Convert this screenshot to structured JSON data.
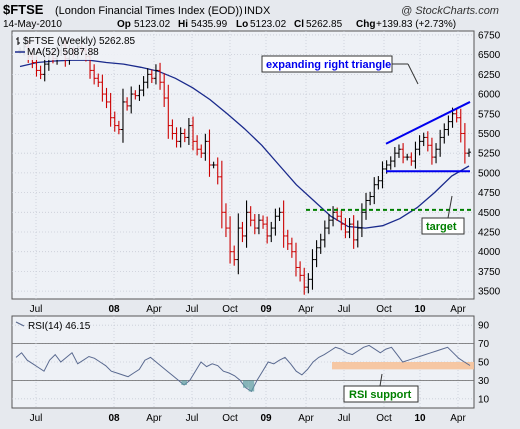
{
  "header": {
    "symbol": "$FTSE",
    "name": "(London Financial Times Index (EOD))",
    "exchange": "INDX",
    "watermark": "@ StockCharts.com",
    "date": "14-May-2010",
    "quote": {
      "op_label": "Op",
      "op": "5123.02",
      "hi_label": "Hi",
      "hi": "5435.99",
      "lo_label": "Lo",
      "lo": "5123.02",
      "cl_label": "Cl",
      "cl": "5262.85",
      "chg_label": "Chg",
      "chg": "+139.83 (+2.73%)"
    }
  },
  "colors": {
    "panel_bg": "#eef1f6",
    "outer_bg": "#e6e9ee",
    "up_bar": "#000000",
    "down_bar": "#cc0000",
    "ma_line": "#1a2a8c",
    "rsi_line": "#5a6a90",
    "annotation_blue": "#0000ee",
    "annotation_green": "#008000",
    "rsi_support_band": "#f6c29a"
  },
  "chart_data": [
    {
      "type": "ohlc",
      "legend": [
        {
          "label": "$FTSE (Weekly) 5262.85",
          "kind": "bar"
        },
        {
          "label": "MA(52) 5087.88",
          "kind": "line"
        }
      ],
      "x_labels": [
        "Jul",
        "08",
        "Apr",
        "Jul",
        "Oct",
        "09",
        "Apr",
        "Jul",
        "Oct",
        "10",
        "Apr"
      ],
      "y_ticks": [
        3500,
        3750,
        4000,
        4250,
        4500,
        4750,
        5000,
        5250,
        5500,
        5750,
        6000,
        6250,
        6500,
        6750
      ],
      "ylim": [
        3400,
        6800
      ],
      "x_range": [
        "2007-05",
        "2010-05"
      ],
      "series": [
        {
          "name": "$FTSE (Weekly)",
          "values": [
            6550,
            6600,
            6480,
            6400,
            6300,
            6250,
            6380,
            6500,
            6450,
            6550,
            6620,
            6450,
            6550,
            6520,
            6600,
            6550,
            6480,
            6300,
            6200,
            6150,
            6000,
            5900,
            5700,
            5600,
            5550,
            5900,
            5850,
            6000,
            5980,
            6050,
            6150,
            6250,
            6200,
            6300,
            6150,
            5950,
            5600,
            5500,
            5400,
            5500,
            5450,
            5600,
            5400,
            5300,
            5250,
            5400,
            5100,
            5100,
            4950,
            4500,
            4300,
            4000,
            3900,
            4300,
            4200,
            4500,
            4400,
            4300,
            4400,
            4350,
            4200,
            4300,
            4450,
            4500,
            4200,
            4100,
            4000,
            3800,
            3700,
            3550,
            3650,
            3900,
            4050,
            4150,
            4300,
            4400,
            4500,
            4450,
            4350,
            4250,
            4350,
            4150,
            4300,
            4500,
            4650,
            4700,
            4850,
            4900,
            5050,
            5100,
            5150,
            5250,
            5300,
            5200,
            5200,
            5150,
            5300,
            5400,
            5450,
            5350,
            5200,
            5300,
            5450,
            5550,
            5650,
            5750,
            5700,
            5500,
            5250,
            5262.85
          ]
        },
        {
          "name": "MA(52)",
          "values": [
            6350,
            6400,
            6420,
            6430,
            6430,
            6400,
            6380,
            6340,
            6290,
            6200,
            6080,
            5930,
            5750,
            5560,
            5350,
            5100,
            4850,
            4650,
            4450,
            4320,
            4300,
            4330,
            4420,
            4560,
            4750,
            4960,
            5087.88
          ]
        }
      ],
      "annotations": [
        {
          "text": "expanding right triangle",
          "color": "#0000ee"
        },
        {
          "text": "target",
          "color": "#008000"
        }
      ],
      "support_level": 5020,
      "target_level": 4530
    },
    {
      "type": "line",
      "legend": [
        {
          "label": "RSI(14) 46.15",
          "kind": "line"
        }
      ],
      "y_ticks": [
        10,
        30,
        50,
        70,
        90
      ],
      "ylim": [
        0,
        100
      ],
      "guide_lines": [
        30,
        70
      ],
      "series": [
        {
          "name": "RSI(14)",
          "values": [
            55,
            60,
            52,
            48,
            44,
            40,
            52,
            58,
            50,
            55,
            60,
            48,
            52,
            56,
            54,
            50,
            46,
            40,
            38,
            36,
            34,
            38,
            42,
            52,
            55,
            50,
            45,
            40,
            35,
            30,
            25,
            30,
            40,
            50,
            45,
            48,
            46,
            40,
            38,
            35,
            30,
            22,
            18,
            30,
            40,
            50,
            48,
            52,
            55,
            48,
            40,
            36,
            42,
            50,
            55,
            58,
            62,
            66,
            64,
            60,
            58,
            62,
            66,
            68,
            64,
            60,
            64,
            66,
            58,
            50,
            52,
            54,
            56,
            58,
            60,
            62,
            64,
            66,
            60,
            54,
            50,
            46.15
          ]
        }
      ],
      "annotations": [
        {
          "text": "RSI support",
          "color": "#008000"
        }
      ],
      "support_band": [
        42,
        50
      ]
    }
  ]
}
